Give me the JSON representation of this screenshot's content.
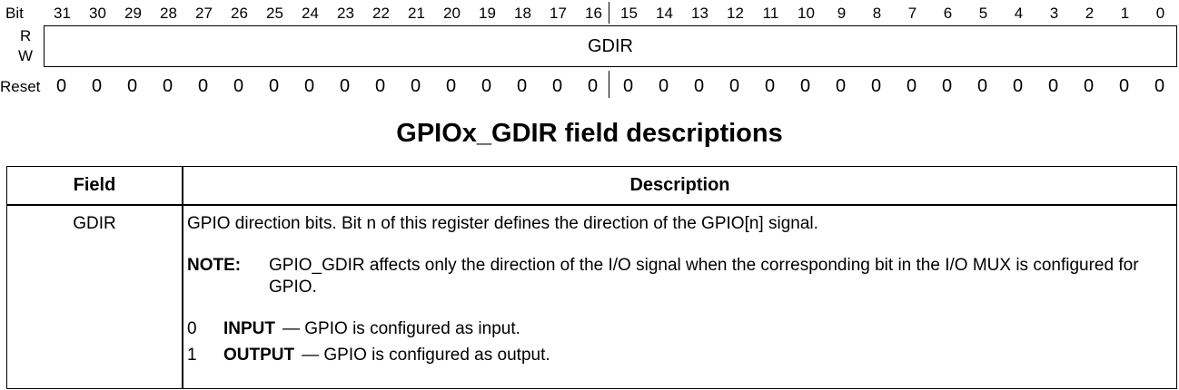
{
  "register": {
    "bit_label": "Bit",
    "r_label": "R",
    "w_label": "W",
    "reset_label": "Reset",
    "field_name": "GDIR",
    "bits": [
      "31",
      "30",
      "29",
      "28",
      "27",
      "26",
      "25",
      "24",
      "23",
      "22",
      "21",
      "20",
      "19",
      "18",
      "17",
      "16",
      "15",
      "14",
      "13",
      "12",
      "11",
      "10",
      "9",
      "8",
      "7",
      "6",
      "5",
      "4",
      "3",
      "2",
      "1",
      "0"
    ],
    "reset_values": [
      "0",
      "0",
      "0",
      "0",
      "0",
      "0",
      "0",
      "0",
      "0",
      "0",
      "0",
      "0",
      "0",
      "0",
      "0",
      "0",
      "0",
      "0",
      "0",
      "0",
      "0",
      "0",
      "0",
      "0",
      "0",
      "0",
      "0",
      "0",
      "0",
      "0",
      "0",
      "0"
    ]
  },
  "table": {
    "title": "GPIOx_GDIR field descriptions",
    "header_field": "Field",
    "header_description": "Description",
    "row": {
      "field": "GDIR",
      "description": "GPIO direction bits. Bit n of this register defines the direction of the GPIO[n] signal.",
      "note_label": "NOTE:",
      "note_text": "GPIO_GDIR affects only the direction of the I/O signal when the corresponding bit in the I/O MUX is configured for GPIO.",
      "values": [
        {
          "num": "0",
          "name": "INPUT",
          "desc": "— GPIO is configured as input."
        },
        {
          "num": "1",
          "name": "OUTPUT",
          "desc": "— GPIO is configured as output."
        }
      ]
    }
  }
}
